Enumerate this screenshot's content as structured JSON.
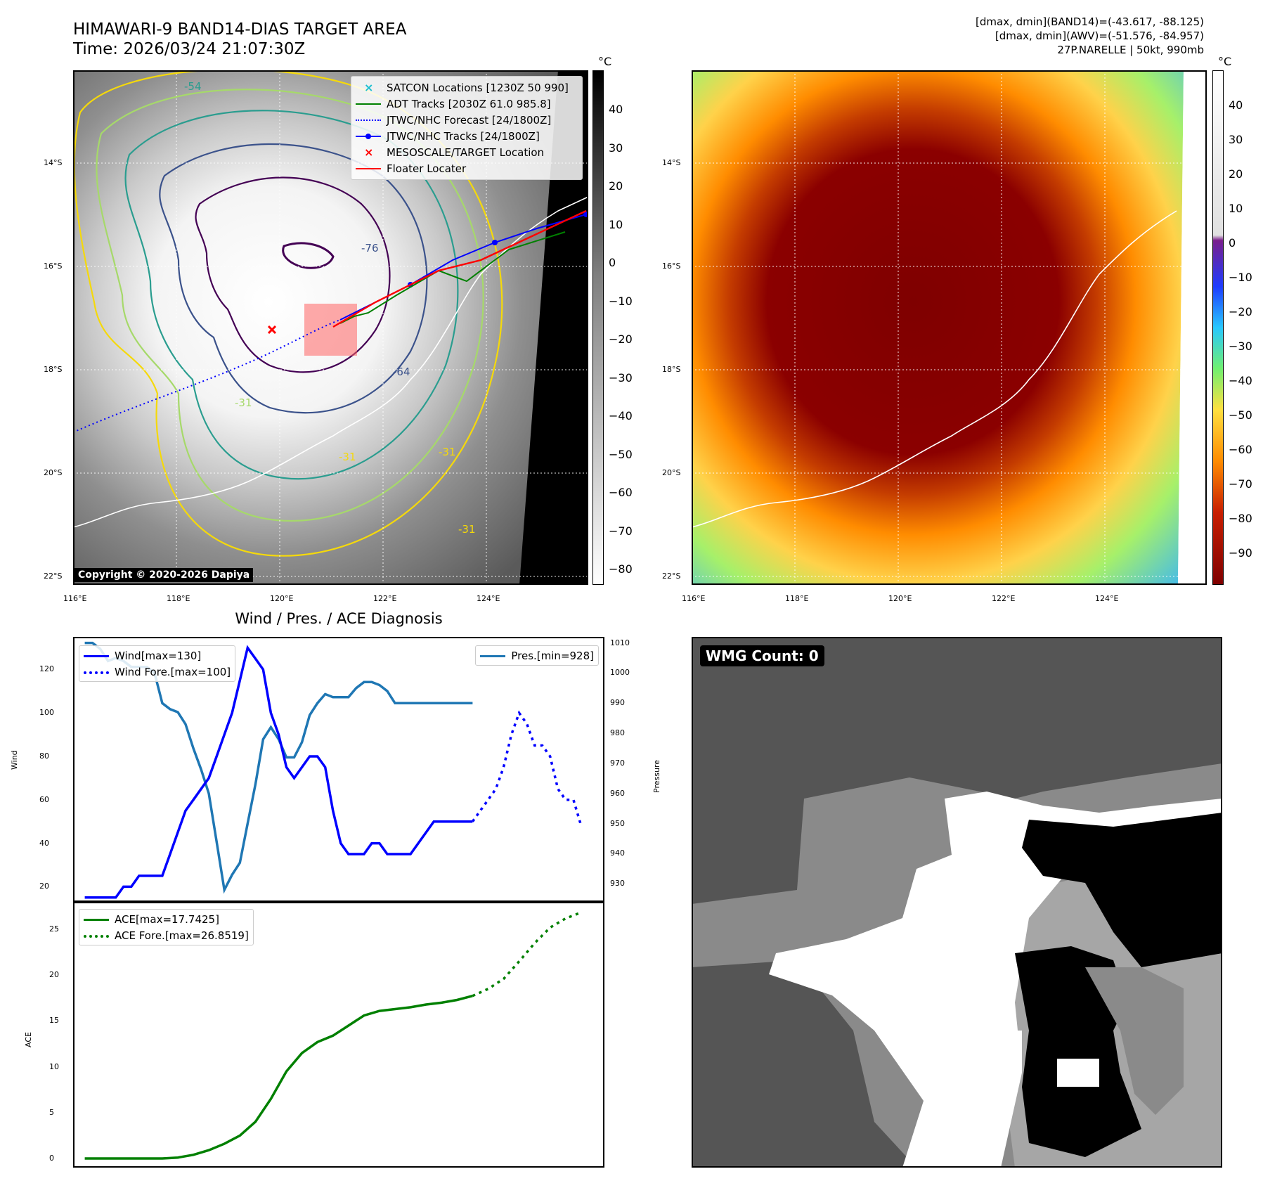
{
  "header": {
    "title_line1": "HIMAWARI-9 BAND14-DIAS TARGET AREA",
    "title_line2": "Time: 2026/03/24 21:07:30Z",
    "info_line1": "[dmax, dmin](BAND14)=(-43.617, -88.125)",
    "info_line2": "[dmax, dmin](AWV)=(-51.576, -84.957)",
    "info_line3": "27P.NARELLE | 50kt, 990mb"
  },
  "map_axes": {
    "lat_labels": [
      "14°S",
      "16°S",
      "18°S",
      "20°S",
      "22°S"
    ],
    "lon_labels": [
      "116°E",
      "118°E",
      "120°E",
      "122°E",
      "124°E"
    ]
  },
  "ir_panel": {
    "legend": [
      {
        "label": "SATCON Locations [1230Z 50 990]",
        "color": "#17becf",
        "kind": "x"
      },
      {
        "label": "ADT Tracks [2030Z 61.0 985.8]",
        "color": "#008000",
        "kind": "line"
      },
      {
        "label": "JTWC/NHC Forecast [24/1800Z]",
        "color": "#0000ff",
        "kind": "dotted"
      },
      {
        "label": "JTWC/NHC Tracks [24/1800Z]",
        "color": "#0000ff",
        "kind": "line-dot"
      },
      {
        "label": "MESOSCALE/TARGET Location",
        "color": "#ff0000",
        "kind": "x"
      },
      {
        "label": "Floater Locater",
        "color": "#ff0000",
        "kind": "line"
      }
    ],
    "contour_labels": [
      "-54",
      "-76",
      "-64",
      "-31",
      "-31",
      "-31",
      "-31"
    ],
    "copyright": "Copyright © 2020-2026 Dapiya",
    "colorbar_unit": "°C",
    "colorbar_ticks": [
      "40",
      "30",
      "20",
      "10",
      "0",
      "−10",
      "−20",
      "−30",
      "−40",
      "−50",
      "−60",
      "−70",
      "−80"
    ]
  },
  "awv_panel": {
    "colorbar_unit": "°C",
    "colorbar_ticks": [
      "40",
      "30",
      "20",
      "10",
      "0",
      "−10",
      "−20",
      "−30",
      "−40",
      "−50",
      "−60",
      "−70",
      "−80",
      "−90"
    ]
  },
  "diagnosis": {
    "title": "Wind / Pres. / ACE Diagnosis",
    "wind_ylabel": "Wind",
    "pres_ylabel": "Pressure",
    "ace_ylabel": "ACE",
    "wind_ticks": [
      "20",
      "40",
      "60",
      "80",
      "100",
      "120"
    ],
    "pres_ticks": [
      "930",
      "940",
      "950",
      "960",
      "970",
      "980",
      "990",
      "1000",
      "1010"
    ],
    "ace_ticks": [
      "0",
      "5",
      "10",
      "15",
      "20",
      "25"
    ],
    "legend_wind": "Wind[max=130]",
    "legend_wind_fore": "Wind Fore.[max=100]",
    "legend_pres": "Pres.[min=928]",
    "legend_ace": "ACE[max=17.7425]",
    "legend_ace_fore": "ACE Fore.[max=26.8519]"
  },
  "wmg": {
    "label": "WMG Count: 0"
  },
  "chart_data": [
    {
      "type": "line",
      "title": "Wind / Pres. / ACE Diagnosis",
      "ylabel": "Wind",
      "ylim": [
        13,
        135
      ],
      "series": [
        {
          "name": "Wind[max=130]",
          "color": "#0000ff",
          "style": "solid",
          "x": [
            0,
            1,
            2,
            3,
            4,
            5,
            6,
            7,
            8,
            9,
            10,
            11,
            12,
            13,
            14,
            15,
            16,
            17,
            18,
            19,
            20,
            21,
            22,
            23,
            24,
            25,
            26,
            27,
            28,
            29,
            30,
            31,
            32,
            33,
            34,
            35,
            36,
            37,
            38,
            39,
            40,
            41,
            42,
            43,
            44,
            45,
            46,
            47,
            48,
            49,
            50
          ],
          "y": [
            15,
            15,
            15,
            15,
            15,
            20,
            20,
            25,
            25,
            25,
            25,
            35,
            45,
            55,
            60,
            65,
            70,
            80,
            90,
            100,
            115,
            130,
            125,
            120,
            100,
            90,
            75,
            70,
            75,
            80,
            80,
            75,
            55,
            40,
            35,
            35,
            35,
            40,
            40,
            35,
            35,
            35,
            35,
            40,
            45,
            50,
            50,
            50,
            50,
            50,
            50
          ]
        },
        {
          "name": "Wind Fore.[max=100]",
          "color": "#0000ff",
          "style": "dotted",
          "x": [
            50,
            51,
            52,
            53,
            54,
            55,
            56,
            57,
            58,
            59,
            60,
            61,
            62,
            63,
            64
          ],
          "y": [
            50,
            55,
            60,
            65,
            75,
            90,
            100,
            95,
            85,
            85,
            80,
            65,
            60,
            60,
            48
          ]
        }
      ]
    },
    {
      "type": "line",
      "ylabel": "Pressure",
      "ylim": [
        924,
        1012
      ],
      "series": [
        {
          "name": "Pres.[min=928]",
          "color": "#1f77b4",
          "style": "solid",
          "x": [
            0,
            1,
            2,
            3,
            4,
            5,
            6,
            7,
            8,
            9,
            10,
            11,
            12,
            13,
            14,
            15,
            16,
            17,
            18,
            19,
            20,
            21,
            22,
            23,
            24,
            25,
            26,
            27,
            28,
            29,
            30,
            31,
            32,
            33,
            34,
            35,
            36,
            37,
            38,
            39,
            40,
            41,
            42,
            43,
            44,
            45,
            46,
            47,
            48,
            49,
            50
          ],
          "y": [
            1010,
            1010,
            1008,
            1004,
            1005,
            1004,
            1002,
            1002,
            1002,
            1000,
            990,
            988,
            987,
            983,
            975,
            968,
            960,
            944,
            928,
            933,
            937,
            950,
            963,
            978,
            982,
            978,
            972,
            972,
            977,
            986,
            990,
            993,
            992,
            992,
            992,
            995,
            997,
            997,
            996,
            994,
            990,
            990,
            990,
            990,
            990,
            990,
            990,
            990,
            990,
            990,
            990
          ]
        }
      ]
    },
    {
      "type": "line",
      "ylabel": "ACE",
      "ylim": [
        -1,
        28
      ],
      "series": [
        {
          "name": "ACE[max=17.7425]",
          "color": "#008000",
          "style": "solid",
          "x": [
            0,
            2,
            4,
            6,
            8,
            10,
            12,
            14,
            16,
            18,
            20,
            22,
            24,
            26,
            28,
            30,
            32,
            34,
            36,
            38,
            40,
            42,
            44,
            46,
            48,
            50
          ],
          "y": [
            0,
            0,
            0,
            0,
            0,
            0,
            0.1,
            0.4,
            0.9,
            1.6,
            2.5,
            4.0,
            6.5,
            9.5,
            11.5,
            12.7,
            13.4,
            14.5,
            15.6,
            16.1,
            16.3,
            16.5,
            16.8,
            17.0,
            17.3,
            17.7425
          ]
        },
        {
          "name": "ACE Fore.[max=26.8519]",
          "color": "#008000",
          "style": "dotted",
          "x": [
            50,
            52,
            54,
            56,
            58,
            60,
            62,
            64
          ],
          "y": [
            17.7425,
            18.5,
            19.6,
            21.5,
            23.5,
            25.2,
            26.2,
            26.8519
          ]
        }
      ]
    }
  ]
}
